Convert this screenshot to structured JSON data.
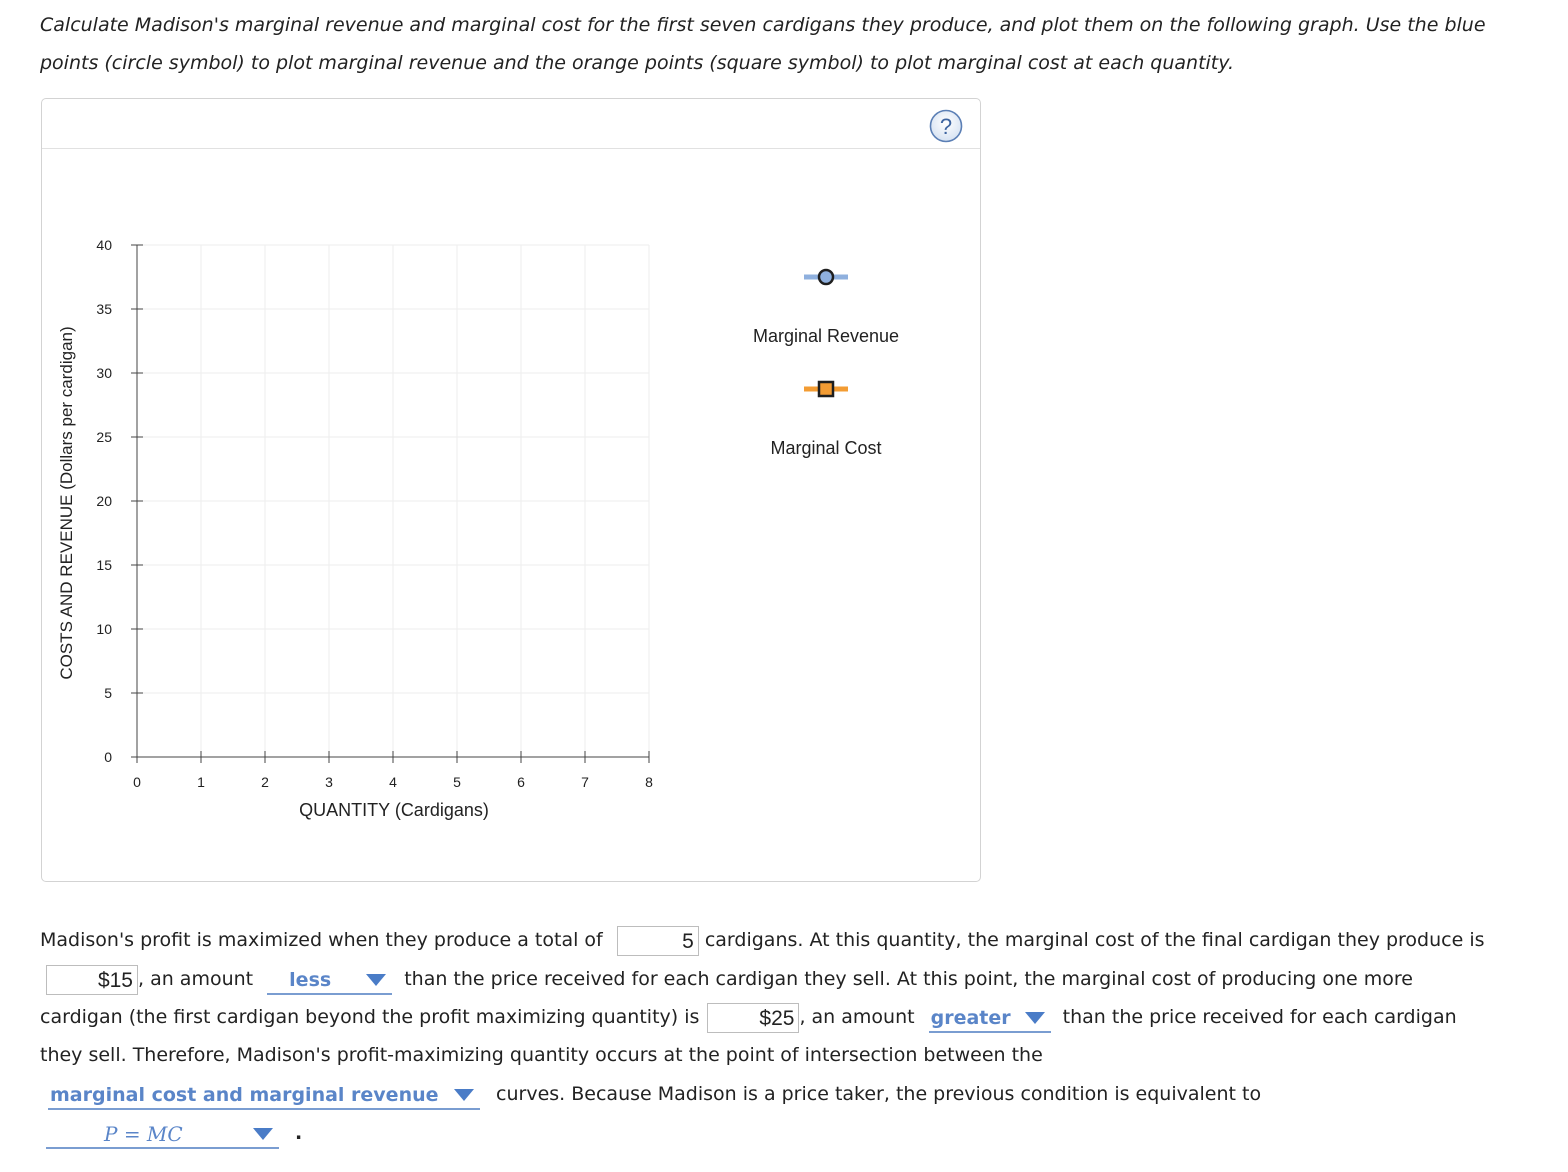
{
  "instructions": "Calculate Madison's marginal revenue and marginal cost for the first seven cardigans they produce, and plot them on the following graph. Use the blue points (circle symbol) to plot marginal revenue and the orange points (square symbol) to plot marginal cost at each quantity.",
  "instructions_lines": [
    "Calculate Madison's marginal revenue and marginal cost for the first seven cardigans they produce, and plot them on the following graph. Use the blue",
    "points (circle symbol) to plot marginal revenue and the orange points (square symbol) to plot marginal cost at each quantity."
  ],
  "help_label": "?",
  "colors": {
    "mr_line": "#8fb0de",
    "mr_marker_fill": "#8fb0de",
    "mr_marker_stroke": "#1f1f1f",
    "mc_line": "#f39c33",
    "mc_marker_fill": "#f39c33",
    "mc_marker_stroke": "#1f1f1f",
    "grid": "#eeeeee",
    "axis": "#444444",
    "dropdown": "#5a85c8"
  },
  "chart_data": {
    "type": "scatter",
    "xlabel": "QUANTITY (Cardigans)",
    "ylabel": "COSTS AND REVENUE (Dollars per cardigan)",
    "xlim": [
      0,
      8
    ],
    "ylim": [
      0,
      40
    ],
    "x_ticks": [
      0,
      1,
      2,
      3,
      4,
      5,
      6,
      7,
      8
    ],
    "y_ticks": [
      0,
      5,
      10,
      15,
      20,
      25,
      30,
      35,
      40
    ],
    "grid": true,
    "legend_placement": "right",
    "series": [
      {
        "name": "Marginal Revenue",
        "marker": "circle",
        "points": []
      },
      {
        "name": "Marginal Cost",
        "marker": "square",
        "points": []
      }
    ]
  },
  "answer": {
    "line1_a": "Madison's profit is maximized when they produce a total of",
    "q_value": "5",
    "line1_b": "cardigans. At this quantity, the marginal cost of the final cardigan they produce is",
    "mc_final": "$15",
    "line2_a": ", an amount",
    "dd1": "less",
    "line2_b": "than the price received for each cardigan they sell. At this point, the marginal cost of producing one more",
    "line3_a": "cardigan (the first cardigan beyond the profit maximizing quantity) is",
    "mc_next": "$25",
    "line3_b": ", an amount",
    "dd2": "greater",
    "line3_c": "than the price received for each cardigan",
    "line4": "they sell. Therefore, Madison's profit-maximizing quantity occurs at the point of intersection between the",
    "dd3": "marginal cost and marginal revenue",
    "line5_b": "curves. Because Madison is a price taker, the previous condition is equivalent to",
    "dd4": "P = MC",
    "line6_end": "."
  }
}
